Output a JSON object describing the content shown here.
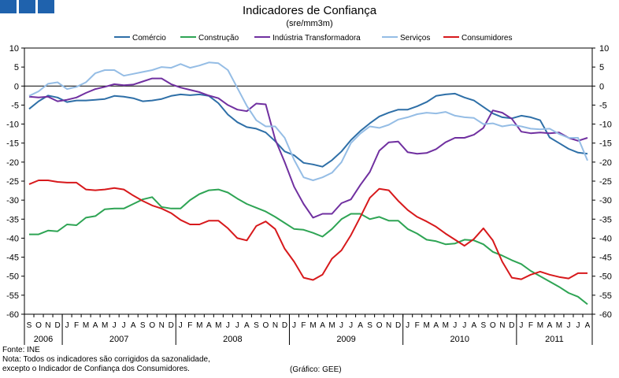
{
  "chart_data": {
    "type": "line",
    "title": "Indicadores de Confiança",
    "subtitle": "(sre/mm3m)",
    "ylim": [
      -60,
      10
    ],
    "yticks": [
      10,
      5,
      0,
      -5,
      -10,
      -15,
      -20,
      -25,
      -30,
      -35,
      -40,
      -45,
      -50,
      -55,
      -60
    ],
    "legend_position": "top",
    "grid": false,
    "month_labels": [
      "S",
      "O",
      "N",
      "D",
      "J",
      "F",
      "M",
      "A",
      "M",
      "J",
      "J",
      "A",
      "S",
      "O",
      "N",
      "D",
      "J",
      "F",
      "M",
      "A",
      "M",
      "J",
      "J",
      "A",
      "S",
      "O",
      "N",
      "D",
      "J",
      "F",
      "M",
      "A",
      "M",
      "J",
      "J",
      "A",
      "S",
      "O",
      "N",
      "D",
      "J",
      "F",
      "M",
      "A",
      "M",
      "J",
      "J",
      "A",
      "S",
      "O",
      "N",
      "D",
      "J",
      "F",
      "M",
      "A",
      "M",
      "J",
      "J",
      "A"
    ],
    "years": [
      {
        "label": "2006",
        "start": 0,
        "end": 4
      },
      {
        "label": "2007",
        "start": 4,
        "end": 16
      },
      {
        "label": "2008",
        "start": 16,
        "end": 28
      },
      {
        "label": "2009",
        "start": 28,
        "end": 40
      },
      {
        "label": "2010",
        "start": 40,
        "end": 52
      },
      {
        "label": "2011",
        "start": 52,
        "end": 60
      }
    ],
    "series": [
      {
        "name": "Comércio",
        "color": "#2e6fa7",
        "values": [
          -6,
          -4,
          -2.5,
          -3,
          -4.2,
          -3.8,
          -3.8,
          -3.6,
          -3.4,
          -2.6,
          -2.8,
          -3.2,
          -4,
          -3.8,
          -3.4,
          -2.6,
          -2.2,
          -2.4,
          -2.2,
          -2.6,
          -4.5,
          -7.5,
          -9.5,
          -10.8,
          -11.2,
          -12.2,
          -14.5,
          -17.2,
          -18.2,
          -20.2,
          -20.6,
          -21.2,
          -19.5,
          -17.2,
          -14.2,
          -11.8,
          -9.8,
          -8,
          -7,
          -6.2,
          -6.2,
          -5.3,
          -4.2,
          -2.6,
          -2.2,
          -2,
          -3,
          -3.8,
          -5.5,
          -7.2,
          -8.2,
          -8.5,
          -7.8,
          -8.2,
          -9,
          -13.5,
          -15,
          -16.5,
          -17.5,
          -17.8
        ]
      },
      {
        "name": "Construção",
        "color": "#2ea454",
        "values": [
          -39,
          -39,
          -38,
          -38.2,
          -36.4,
          -36.6,
          -34.6,
          -34.2,
          -32.4,
          -32.2,
          -32.2,
          -31,
          -29.8,
          -29.2,
          -31.8,
          -32.2,
          -32.2,
          -30,
          -28.4,
          -27.4,
          -27.2,
          -28,
          -29.6,
          -31,
          -32,
          -33,
          -34.4,
          -36,
          -37.6,
          -37.8,
          -38.6,
          -39.6,
          -37.6,
          -35,
          -33.6,
          -33.6,
          -35,
          -34.4,
          -35.4,
          -35.4,
          -37.6,
          -38.8,
          -40.4,
          -40.8,
          -41.6,
          -41.4,
          -40.4,
          -40.6,
          -41.6,
          -43.6,
          -44.6,
          -45.8,
          -46.8,
          -48.6,
          -50,
          -51.4,
          -52.8,
          -54.4,
          -55.4,
          -57.4
        ]
      },
      {
        "name": "Indústria Transformadora",
        "color": "#7030a0",
        "values": [
          -2.8,
          -3,
          -2.8,
          -4,
          -3.6,
          -3,
          -1.8,
          -0.8,
          -0.2,
          0.5,
          0.2,
          0.4,
          1.2,
          2,
          2,
          0.5,
          -0.4,
          -1,
          -1.6,
          -2.5,
          -3.2,
          -5,
          -6.2,
          -6.6,
          -4.6,
          -4.8,
          -14,
          -20,
          -26.5,
          -31,
          -34.6,
          -33.6,
          -33.6,
          -30.8,
          -29.8,
          -26,
          -22.6,
          -17,
          -14.8,
          -14.6,
          -17.4,
          -17.8,
          -17.6,
          -16.6,
          -14.8,
          -13.6,
          -13.6,
          -12.8,
          -11,
          -6.4,
          -7,
          -8.6,
          -12,
          -12.4,
          -12.2,
          -12.4,
          -12.2,
          -13.6,
          -14.4,
          -13.6
        ]
      },
      {
        "name": "Serviços",
        "color": "#95bde5",
        "values": [
          -2.6,
          -1.4,
          0.6,
          1,
          -0.8,
          -0.2,
          1,
          3.4,
          4.2,
          4.2,
          2.7,
          3.2,
          3.7,
          4.2,
          5,
          4.8,
          5.8,
          4.8,
          5.4,
          6.2,
          6,
          4.2,
          -0.5,
          -5.2,
          -9,
          -10.6,
          -10.6,
          -13.6,
          -19.4,
          -24,
          -24.8,
          -24,
          -22.8,
          -20,
          -15,
          -12.5,
          -10.6,
          -11,
          -10.2,
          -8.8,
          -8.2,
          -7.4,
          -7,
          -7.2,
          -6.8,
          -7.8,
          -8.2,
          -8.4,
          -10,
          -9.8,
          -10.6,
          -10.2,
          -10.6,
          -11.2,
          -11.4,
          -11.2,
          -12.6,
          -13.6,
          -13.6,
          -19.6
        ]
      },
      {
        "name": "Consumidores",
        "color": "#d7191c",
        "values": [
          -25.8,
          -24.8,
          -24.8,
          -25.2,
          -25.4,
          -25.4,
          -27.2,
          -27.4,
          -27.2,
          -26.8,
          -27.2,
          -28.8,
          -30.2,
          -31.4,
          -32.2,
          -33.4,
          -35.2,
          -36.4,
          -36.4,
          -35.4,
          -35.4,
          -37.4,
          -40,
          -40.6,
          -36.8,
          -35.6,
          -37.6,
          -42.8,
          -46.2,
          -50.4,
          -51,
          -49.6,
          -45.4,
          -43.2,
          -39.2,
          -34.4,
          -29.4,
          -27,
          -27.4,
          -30.2,
          -32.6,
          -34.4,
          -35.6,
          -37,
          -38.8,
          -40.4,
          -42,
          -40.2,
          -37.4,
          -40.6,
          -46.2,
          -50.4,
          -50.8,
          -49.6,
          -48.8,
          -49.6,
          -50.2,
          -50.6,
          -49.2,
          -49.2
        ]
      }
    ]
  },
  "footer": {
    "source": "Fonte: INE",
    "note_line1": "Nota: Todos os indicadores são corrigidos da sazonalidade,",
    "note_line2": "excepto o Indicador de Confiança dos Consumidores.",
    "credit": "(Gráfico: GEE)"
  }
}
